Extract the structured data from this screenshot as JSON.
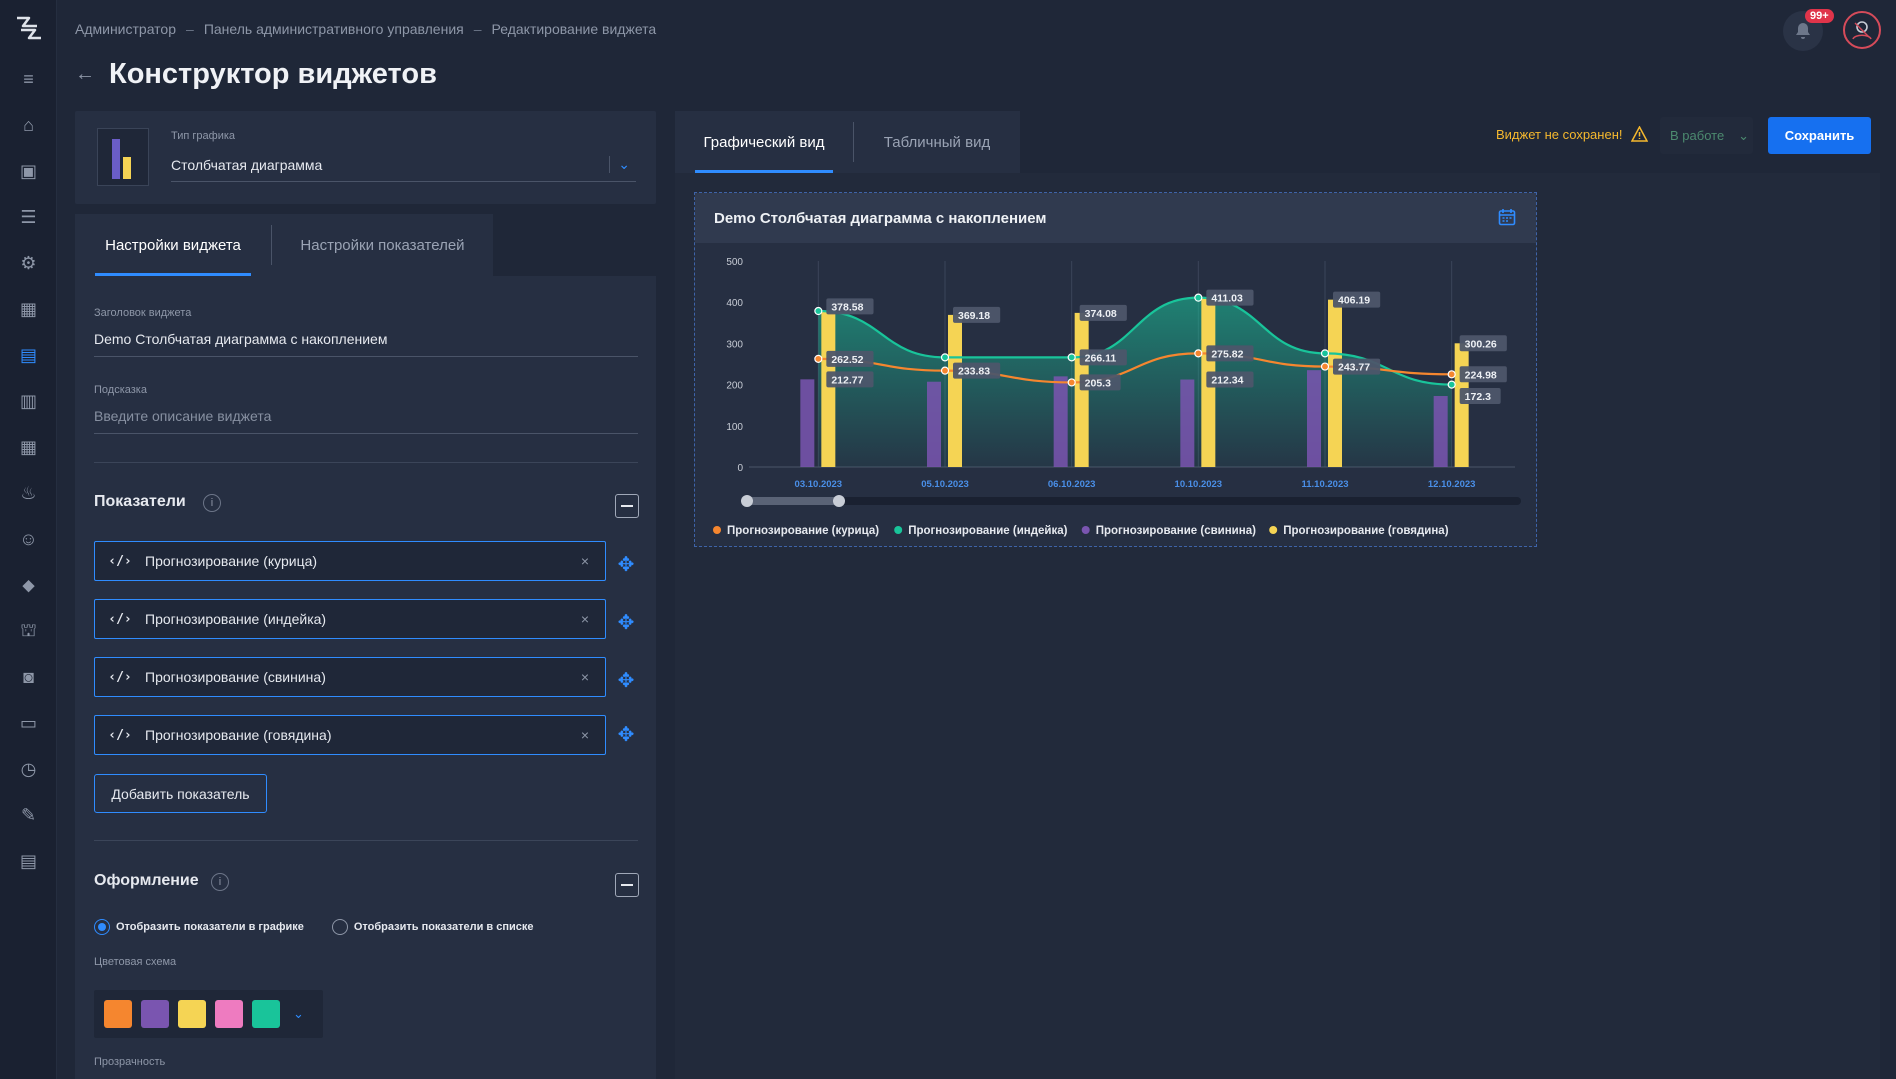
{
  "breadcrumb": [
    "Администратор",
    "Панель административного управления",
    "Редактирование виджета"
  ],
  "breadcrumb_sep": "–",
  "page_title": "Конструктор виджетов",
  "notifications_badge": "99+",
  "sidebar_icons": [
    "menu-icon",
    "home-icon",
    "ai-icon",
    "database-icon",
    "settings-box-icon",
    "grid-icon",
    "chart-list-icon",
    "table-icon",
    "dashboard-icon",
    "alert-icon",
    "users-icon",
    "tag-icon",
    "hierarchy-icon",
    "gamepad-icon",
    "wallet-icon",
    "clock-icon",
    "edit-icon",
    "document-icon"
  ],
  "chart_type": {
    "label": "Тип графика",
    "value": "Столбчатая диаграмма"
  },
  "left_tabs": [
    "Настройки виджета",
    "Настройки показателей"
  ],
  "widget_title": {
    "label": "Заголовок виджета",
    "value": "Demo Столбчатая диаграмма с накоплением"
  },
  "hint": {
    "label": "Подсказка",
    "placeholder": "Введите описание виджета"
  },
  "indicators": {
    "title": "Показатели",
    "items": [
      "Прогнозирование (курица)",
      "Прогнозирование (индейка)",
      "Прогнозирование (свинина)",
      "Прогнозирование (говядина)"
    ],
    "code_symbol": "‹/›",
    "remove_symbol": "×",
    "add_button": "Добавить показатель"
  },
  "appearance": {
    "title": "Оформление",
    "radio_graph": "Отобразить показатели в графике",
    "radio_list": "Отобразить показатели в списке",
    "color_scheme_label": "Цветовая схема",
    "colors": [
      "#f5862f",
      "#7a55b0",
      "#f5d454",
      "#ee7bc0",
      "#19c49a"
    ],
    "opacity_label": "Прозрачность"
  },
  "right_tabs": [
    "Графический вид",
    "Табличный вид"
  ],
  "unsaved_text": "Виджет не сохранен!",
  "status_select": "В работе",
  "save_button": "Сохранить",
  "chart_data": {
    "type": "bar",
    "title": "Demo Столбчатая диаграмма с накоплением",
    "categories": [
      "03.10.2023",
      "05.10.2023",
      "06.10.2023",
      "10.10.2023",
      "11.10.2023",
      "12.10.2023"
    ],
    "ylim": [
      0,
      500
    ],
    "yticks": [
      0,
      100,
      200,
      300,
      400,
      500
    ],
    "series": [
      {
        "name": "Прогнозирование (курица)",
        "kind": "line",
        "color": "#f5862f",
        "values": [
          262.52,
          233.83,
          205.3,
          275.82,
          243.77,
          224.98
        ]
      },
      {
        "name": "Прогнозирование (индейка)",
        "kind": "area",
        "color": "#19c49a",
        "values": [
          378.58,
          266.11,
          266.11,
          411.03,
          275.82,
          200.0
        ]
      },
      {
        "name": "Прогнозирование (свинина)",
        "kind": "bar",
        "color": "#7a55b0",
        "values": [
          212.77,
          207.0,
          220.0,
          212.34,
          235.0,
          172.3
        ]
      },
      {
        "name": "Прогнозирование (говядина)",
        "kind": "bar",
        "color": "#f5d454",
        "values": [
          378.58,
          369.18,
          374.08,
          411.03,
          406.19,
          300.26
        ]
      }
    ],
    "labels": [
      {
        "text": "378.58",
        "cat": 0,
        "v": 390
      },
      {
        "text": "262.52",
        "cat": 0,
        "v": 262.52
      },
      {
        "text": "212.77",
        "cat": 0,
        "v": 212.77
      },
      {
        "text": "369.18",
        "cat": 1,
        "v": 369.18
      },
      {
        "text": "233.83",
        "cat": 1,
        "v": 233.83
      },
      {
        "text": "374.08",
        "cat": 2,
        "v": 374.08
      },
      {
        "text": "266.11",
        "cat": 2,
        "v": 266.11
      },
      {
        "text": "205.3",
        "cat": 2,
        "v": 205.3
      },
      {
        "text": "411.03",
        "cat": 3,
        "v": 411.03
      },
      {
        "text": "275.82",
        "cat": 3,
        "v": 275.82
      },
      {
        "text": "212.34",
        "cat": 3,
        "v": 212.34
      },
      {
        "text": "406.19",
        "cat": 4,
        "v": 406.19
      },
      {
        "text": "243.77",
        "cat": 4,
        "v": 243.77
      },
      {
        "text": "300.26",
        "cat": 5,
        "v": 300.26
      },
      {
        "text": "224.98",
        "cat": 5,
        "v": 224.98
      },
      {
        "text": "172.3",
        "cat": 5,
        "v": 172.3
      }
    ],
    "legend_position": "bottom-left",
    "grid": false
  }
}
